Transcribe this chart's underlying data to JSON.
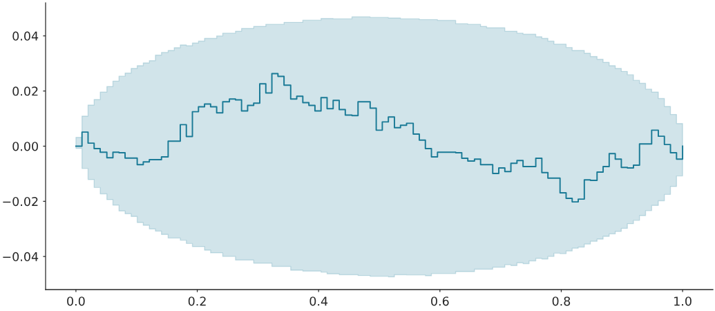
{
  "chart_data": {
    "type": "step",
    "x": [
      0,
      0.01,
      0.02,
      0.03,
      0.04,
      0.051,
      0.061,
      0.071,
      0.081,
      0.091,
      0.101,
      0.111,
      0.121,
      0.131,
      0.141,
      0.152,
      0.162,
      0.172,
      0.182,
      0.192,
      0.202,
      0.212,
      0.222,
      0.232,
      0.242,
      0.253,
      0.263,
      0.273,
      0.283,
      0.293,
      0.303,
      0.313,
      0.323,
      0.333,
      0.343,
      0.354,
      0.364,
      0.374,
      0.384,
      0.394,
      0.404,
      0.414,
      0.424,
      0.434,
      0.444,
      0.455,
      0.465,
      0.475,
      0.485,
      0.495,
      0.505,
      0.515,
      0.525,
      0.535,
      0.545,
      0.556,
      0.566,
      0.576,
      0.586,
      0.596,
      0.606,
      0.616,
      0.626,
      0.636,
      0.646,
      0.657,
      0.667,
      0.677,
      0.687,
      0.697,
      0.707,
      0.717,
      0.727,
      0.737,
      0.747,
      0.758,
      0.768,
      0.778,
      0.788,
      0.798,
      0.808,
      0.818,
      0.828,
      0.838,
      0.848,
      0.859,
      0.869,
      0.879,
      0.889,
      0.899,
      0.909,
      0.919,
      0.929,
      0.939,
      0.949,
      0.96,
      0.97,
      0.98,
      0.99,
      1.0
    ],
    "xlim": [
      -0.05,
      1.05
    ],
    "ylim": [
      -0.052,
      0.052
    ],
    "xticks": [
      {
        "value": 0,
        "label": "0.0"
      },
      0.2,
      0.4,
      0.6,
      0.8,
      {
        "value": 1,
        "label": "1.0"
      }
    ],
    "yticks": [
      {
        "value": -0.04,
        "label": "−0.04"
      },
      {
        "value": -0.02,
        "label": "−0.02"
      },
      {
        "value": 0,
        "label": "0.00"
      },
      0.02,
      0.04
    ],
    "line_style": "solid",
    "series": [
      {
        "color": "#1a7a96",
        "values": [
          0.0,
          0.0051,
          0.0011,
          -0.0009,
          -0.0022,
          -0.0042,
          -0.0022,
          -0.0024,
          -0.0043,
          -0.0043,
          -0.0067,
          -0.0057,
          -0.0049,
          -0.0049,
          -0.0039,
          0.0018,
          0.0018,
          0.0078,
          0.0035,
          0.0125,
          0.0143,
          0.0153,
          0.0143,
          0.0121,
          0.0161,
          0.0171,
          0.0168,
          0.0128,
          0.0148,
          0.0156,
          0.0226,
          0.0193,
          0.0263,
          0.0253,
          0.0221,
          0.0171,
          0.0181,
          0.0158,
          0.0148,
          0.0128,
          0.0176,
          0.0136,
          0.0166,
          0.0133,
          0.0113,
          0.0111,
          0.0161,
          0.0161,
          0.0138,
          0.0058,
          0.0088,
          0.0106,
          0.0067,
          0.0076,
          0.0083,
          0.0044,
          0.0022,
          -0.0009,
          -0.0039,
          -0.0022,
          -0.0022,
          -0.0022,
          -0.0024,
          -0.0044,
          -0.0054,
          -0.0047,
          -0.0067,
          -0.0067,
          -0.0099,
          -0.0079,
          -0.0092,
          -0.0062,
          -0.0052,
          -0.0074,
          -0.0074,
          -0.0044,
          -0.0096,
          -0.0116,
          -0.0116,
          -0.0169,
          -0.0189,
          -0.0202,
          -0.0192,
          -0.0122,
          -0.0124,
          -0.0094,
          -0.0074,
          -0.0027,
          -0.0047,
          -0.0077,
          -0.0079,
          -0.0069,
          0.0008,
          0.0008,
          0.0058,
          0.0036,
          0.0006,
          -0.0024,
          -0.0047,
          0.0
        ],
        "upper": [
          0.0032,
          0.0109,
          0.0149,
          0.0169,
          0.0196,
          0.0216,
          0.0236,
          0.0254,
          0.0265,
          0.0282,
          0.0292,
          0.0302,
          0.031,
          0.033,
          0.034,
          0.0347,
          0.0357,
          0.0367,
          0.0364,
          0.0374,
          0.0381,
          0.0391,
          0.0391,
          0.04,
          0.041,
          0.041,
          0.0417,
          0.0427,
          0.0427,
          0.0434,
          0.0434,
          0.0442,
          0.0442,
          0.0442,
          0.0449,
          0.0449,
          0.0449,
          0.0457,
          0.0457,
          0.0457,
          0.0463,
          0.0463,
          0.0462,
          0.0462,
          0.0462,
          0.0469,
          0.0469,
          0.0469,
          0.0467,
          0.0467,
          0.0467,
          0.0465,
          0.0465,
          0.0462,
          0.0462,
          0.0462,
          0.0459,
          0.0459,
          0.0459,
          0.0456,
          0.0456,
          0.0456,
          0.0444,
          0.0444,
          0.0442,
          0.0442,
          0.0434,
          0.0429,
          0.0429,
          0.0429,
          0.0417,
          0.0417,
          0.041,
          0.0406,
          0.0406,
          0.0397,
          0.0391,
          0.0381,
          0.037,
          0.037,
          0.0358,
          0.0347,
          0.0347,
          0.0337,
          0.0325,
          0.0315,
          0.0304,
          0.0292,
          0.0282,
          0.0271,
          0.0259,
          0.0239,
          0.0228,
          0.0207,
          0.0196,
          0.0173,
          0.0144,
          0.0115,
          0.0082,
          0.0082
        ],
        "lower": [
          -0.0008,
          -0.0081,
          -0.0121,
          -0.015,
          -0.0173,
          -0.0194,
          -0.0214,
          -0.0235,
          -0.0245,
          -0.0255,
          -0.0277,
          -0.0287,
          -0.03,
          -0.0308,
          -0.032,
          -0.0333,
          -0.0333,
          -0.0341,
          -0.0353,
          -0.0364,
          -0.0364,
          -0.0377,
          -0.0387,
          -0.0387,
          -0.04,
          -0.04,
          -0.0413,
          -0.0413,
          -0.0413,
          -0.0424,
          -0.0424,
          -0.0424,
          -0.0436,
          -0.0436,
          -0.0436,
          -0.045,
          -0.045,
          -0.0453,
          -0.0453,
          -0.0453,
          -0.0457,
          -0.0463,
          -0.0463,
          -0.0466,
          -0.0466,
          -0.0466,
          -0.0469,
          -0.0469,
          -0.0472,
          -0.0472,
          -0.0472,
          -0.0474,
          -0.0466,
          -0.0466,
          -0.0467,
          -0.0467,
          -0.0467,
          -0.047,
          -0.0462,
          -0.0462,
          -0.0462,
          -0.0462,
          -0.0455,
          -0.0455,
          -0.0455,
          -0.0446,
          -0.0446,
          -0.0446,
          -0.0439,
          -0.0439,
          -0.043,
          -0.0433,
          -0.0423,
          -0.0426,
          -0.0416,
          -0.0407,
          -0.0409,
          -0.04,
          -0.0388,
          -0.039,
          -0.038,
          -0.037,
          -0.0366,
          -0.0355,
          -0.0345,
          -0.0337,
          -0.0327,
          -0.0318,
          -0.0309,
          -0.0298,
          -0.0281,
          -0.0269,
          -0.0252,
          -0.0234,
          -0.0215,
          -0.0198,
          -0.0175,
          -0.0146,
          -0.0108,
          -0.0108
        ]
      }
    ]
  }
}
